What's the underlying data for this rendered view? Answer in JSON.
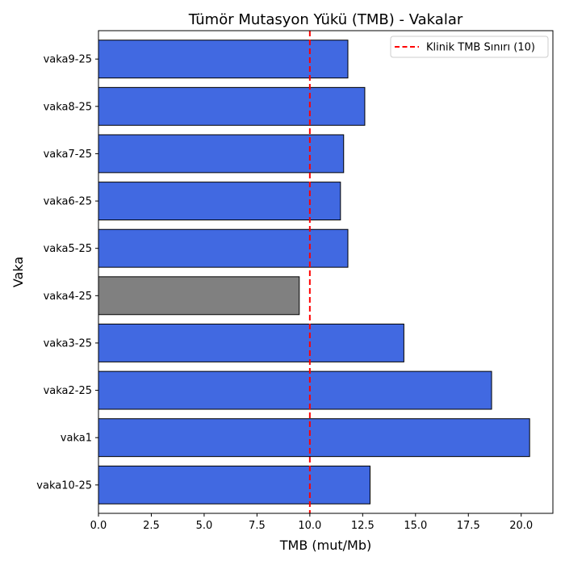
{
  "chart_data": {
    "type": "bar",
    "orientation": "horizontal",
    "title": "Tümör Mutasyon Yükü (TMB) - Vakalar",
    "xlabel": "TMB (mut/Mb)",
    "ylabel": "Vaka",
    "xlim": [
      0,
      21.5
    ],
    "xticks": [
      0.0,
      2.5,
      5.0,
      7.5,
      10.0,
      12.5,
      15.0,
      17.5,
      20.0
    ],
    "xtick_labels": [
      "0.0",
      "2.5",
      "5.0",
      "7.5",
      "10.0",
      "12.5",
      "15.0",
      "17.5",
      "20.0"
    ],
    "categories": [
      "vaka10-25",
      "vaka1",
      "vaka2-25",
      "vaka3-25",
      "vaka4-25",
      "vaka5-25",
      "vaka6-25",
      "vaka7-25",
      "vaka8-25",
      "vaka9-25"
    ],
    "values": [
      12.85,
      20.4,
      18.6,
      14.45,
      9.5,
      11.8,
      11.45,
      11.6,
      12.6,
      11.8
    ],
    "bar_colors": [
      "#4169e1",
      "#4169e1",
      "#4169e1",
      "#4169e1",
      "#808080",
      "#4169e1",
      "#4169e1",
      "#4169e1",
      "#4169e1",
      "#4169e1"
    ],
    "reference_line": {
      "value": 10,
      "label": "Klinik TMB Sınırı (10)",
      "color": "#ff0000",
      "style": "dashed"
    },
    "legend_position": "top-right",
    "grid": false
  }
}
